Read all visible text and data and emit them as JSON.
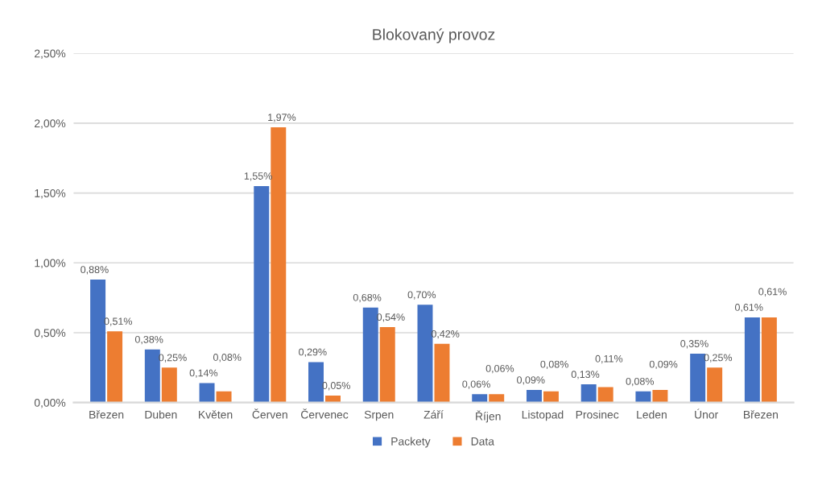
{
  "chart_data": {
    "type": "bar",
    "title": "Blokovaný provoz",
    "categories": [
      "Březen",
      "Duben",
      "Květen",
      "Červen",
      "Červenec",
      "Srpen",
      "Září",
      "Říjen",
      "Listopad",
      "Prosinec",
      "Leden",
      "Únor",
      "Březen"
    ],
    "series": [
      {
        "name": "Packety",
        "color": "#4472c4",
        "values": [
          0.88,
          0.38,
          0.14,
          1.55,
          0.29,
          0.68,
          0.7,
          0.06,
          0.09,
          0.13,
          0.08,
          0.35,
          0.61
        ],
        "value_labels": [
          "0,88%",
          "0,38%",
          "0,14%",
          "1,55%",
          "0,29%",
          "0,68%",
          "0,70%",
          "0,06%",
          "0,09%",
          "0,13%",
          "0,08%",
          "0,35%",
          "0,61%"
        ]
      },
      {
        "name": "Data",
        "color": "#ed7d31",
        "values": [
          0.51,
          0.25,
          0.08,
          1.97,
          0.05,
          0.54,
          0.42,
          0.06,
          0.08,
          0.11,
          0.09,
          0.25,
          0.61
        ],
        "value_labels": [
          "0,51%",
          "0,25%",
          "0,08%",
          "1,97%",
          "0,05%",
          "0,54%",
          "0,42%",
          "0,06%",
          "0,08%",
          "0,11%",
          "0,09%",
          "0,25%",
          "0,61%"
        ]
      }
    ],
    "ylim": [
      0,
      2.5
    ],
    "yticks": [
      {
        "value": 0,
        "label": "0,00%"
      },
      {
        "value": 0.5,
        "label": "0,50%"
      },
      {
        "value": 1.0,
        "label": "1,00%"
      },
      {
        "value": 1.5,
        "label": "1,50%"
      },
      {
        "value": 2.0,
        "label": "2,00%"
      },
      {
        "value": 2.5,
        "label": "2,50%"
      }
    ],
    "grid": "y",
    "legend": "bottom"
  }
}
